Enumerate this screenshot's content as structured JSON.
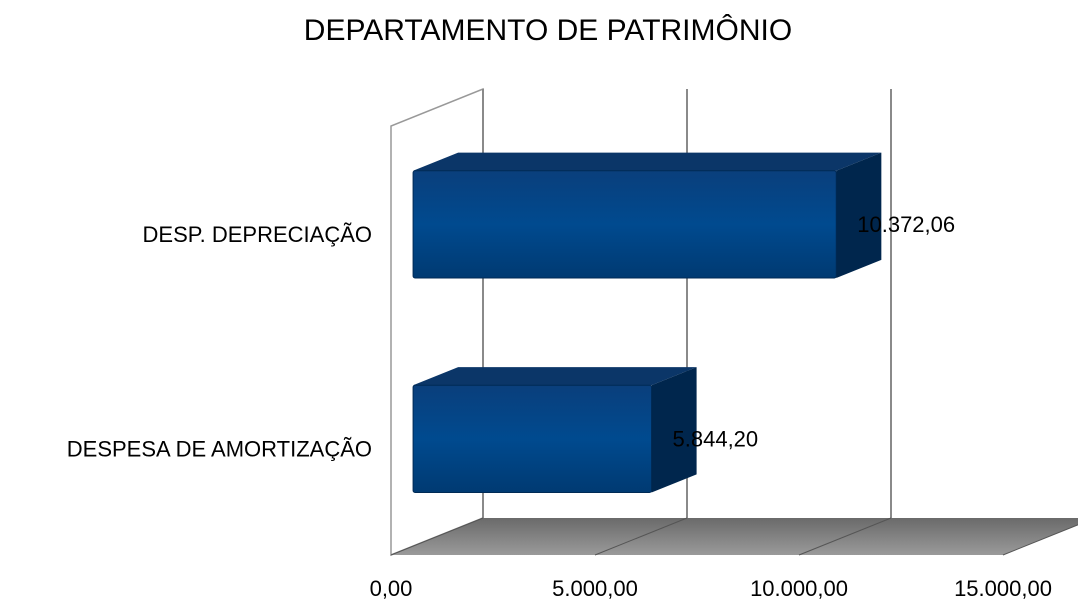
{
  "chart_data": {
    "type": "bar3d_horizontal",
    "title": "DEPARTAMENTO DE PATRIMÔNIO",
    "categories": [
      "DESP. DEPRECIAÇÃO",
      "DESPESA DE AMORTIZAÇÃO"
    ],
    "values": [
      10372.06,
      5844.2
    ],
    "value_labels": [
      "10.372,06",
      "5.844,20"
    ],
    "color": "#004a8f",
    "xlim": [
      0,
      15000
    ],
    "xticks": [
      {
        "value": 0,
        "label": "0,00"
      },
      {
        "value": 5000,
        "label": "5.000,00"
      },
      {
        "value": 10000,
        "label": "10.000,00"
      },
      {
        "value": 15000,
        "label": "15.000,00"
      }
    ],
    "grid": true
  }
}
